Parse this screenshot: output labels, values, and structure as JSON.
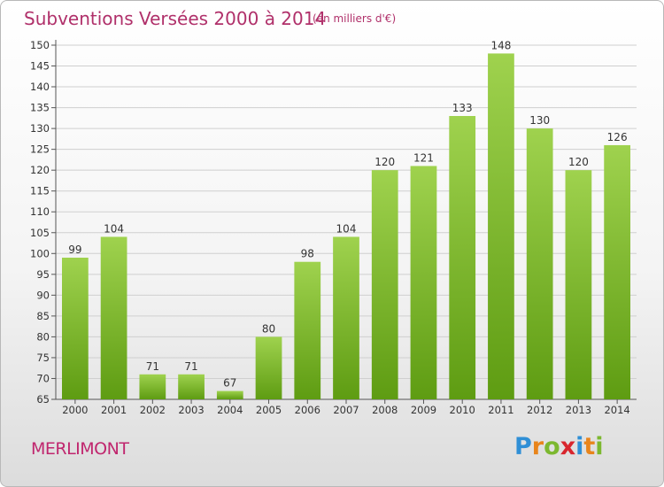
{
  "title": "Subventions Versées 2000 à 2014",
  "subtitle": "(en milliers d'€)",
  "commune": "MERLIMONT",
  "brand": {
    "letters": [
      {
        "ch": "P",
        "color": "#2f8fd6"
      },
      {
        "ch": "r",
        "color": "#e8851c"
      },
      {
        "ch": "o",
        "color": "#7cb82f"
      },
      {
        "ch": "x",
        "color": "#d8262e"
      },
      {
        "ch": "i",
        "color": "#2f8fd6"
      },
      {
        "ch": "t",
        "color": "#e8851c"
      },
      {
        "ch": "i",
        "color": "#7cb82f"
      }
    ]
  },
  "colors": {
    "title": "#b0306a",
    "bar_light": "#9fd24e",
    "bar_dark": "#5e9c12",
    "grid": "#cfcfcf"
  },
  "chart_data": {
    "type": "bar",
    "title": "Subventions Versées 2000 à 2014",
    "subtitle": "(en milliers d'€)",
    "categories": [
      "2000",
      "2001",
      "2002",
      "2003",
      "2004",
      "2005",
      "2006",
      "2007",
      "2008",
      "2009",
      "2010",
      "2011",
      "2012",
      "2013",
      "2014"
    ],
    "values": [
      99,
      104,
      71,
      71,
      67,
      80,
      98,
      104,
      120,
      121,
      133,
      148,
      130,
      120,
      126
    ],
    "ylim": [
      65,
      150
    ],
    "yticks": [
      65,
      70,
      75,
      80,
      85,
      90,
      95,
      100,
      105,
      110,
      115,
      120,
      125,
      130,
      135,
      140,
      145,
      150
    ],
    "grid": true,
    "data_labels": true
  }
}
